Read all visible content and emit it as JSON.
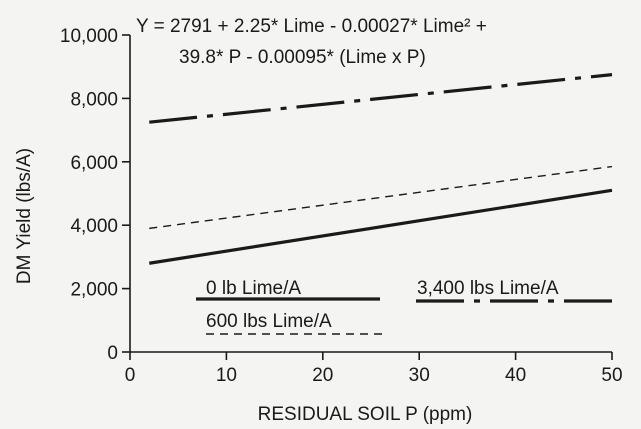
{
  "chart_data": {
    "type": "line",
    "title": "",
    "equation_line1": "Y = 2791 + 2.25* Lime - 0.00027* Lime² +",
    "equation_line2": "39.8* P - 0.00095* (Lime x P)",
    "xlabel": "RESIDUAL SOIL P (ppm)",
    "ylabel": "DM Yield (lbs/A)",
    "xlim": [
      0,
      50
    ],
    "ylim": [
      0,
      10000
    ],
    "x_ticks": [
      0,
      10,
      20,
      30,
      40,
      50
    ],
    "x_tick_labels": [
      "0",
      "10",
      "20",
      "30",
      "40",
      "50"
    ],
    "y_ticks": [
      0,
      2000,
      4000,
      6000,
      8000,
      10000
    ],
    "y_tick_labels": [
      "0",
      "2,000",
      "4,000",
      "6,000",
      "8,000",
      "10,000"
    ],
    "grid": false,
    "legend_position": "bottom-center inside plot",
    "series": [
      {
        "name": "0 lb Lime/A",
        "style": "solid-thick",
        "x": [
          2,
          50
        ],
        "y": [
          2800,
          5100
        ]
      },
      {
        "name": "600 lbs Lime/A",
        "style": "dashed-thin",
        "x": [
          2,
          50
        ],
        "y": [
          3900,
          5850
        ]
      },
      {
        "name": "3,400 lbs Lime/A",
        "style": "long-short-dash",
        "x": [
          2,
          50
        ],
        "y": [
          7250,
          8750
        ]
      }
    ]
  }
}
